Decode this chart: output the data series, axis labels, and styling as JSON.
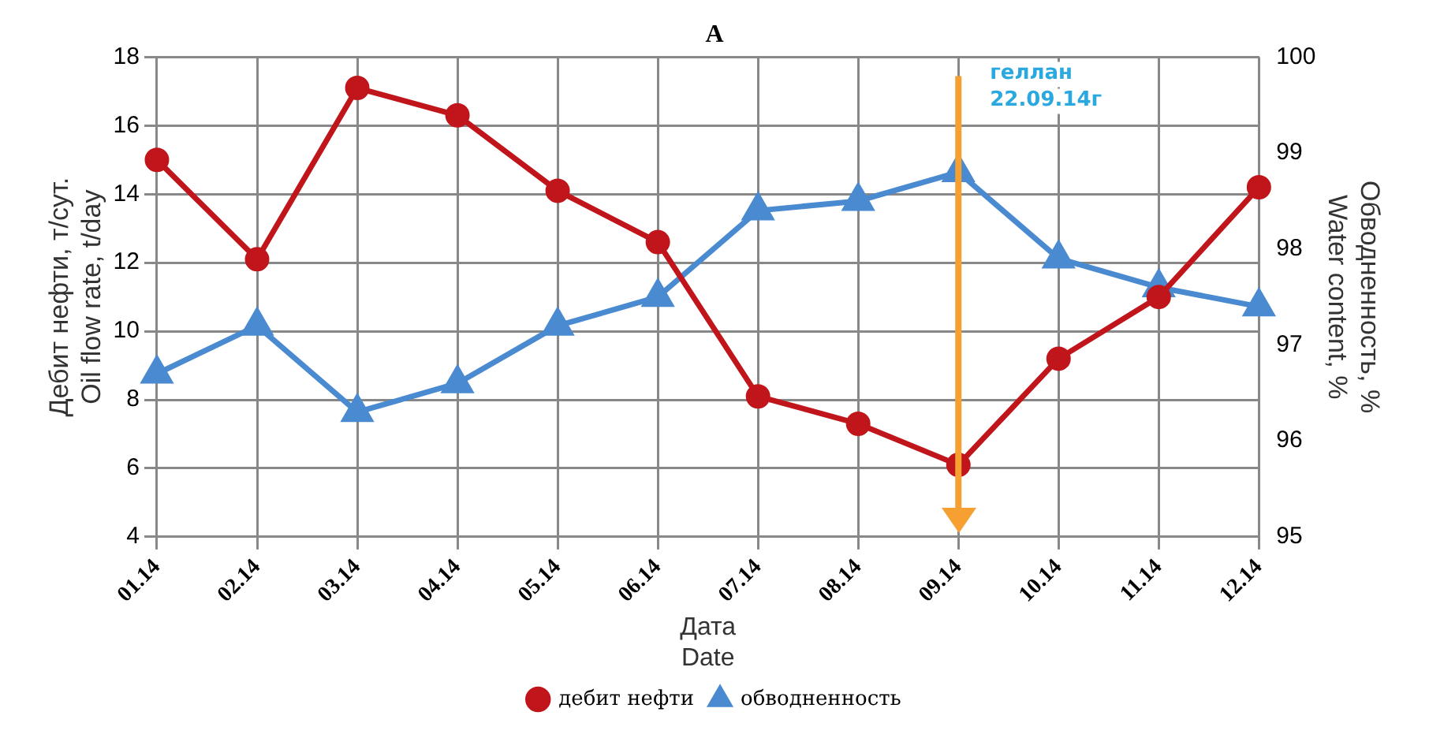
{
  "chart_data": {
    "type": "line",
    "title": "A",
    "xlabel": "Дата\nDate",
    "ylabel": "Дебит нефти, т/сут.\nOil flow rate, t/day",
    "y2label": "Обводненность, %\nWater content, %",
    "categories": [
      "01.14",
      "02.14",
      "03.14",
      "04.14",
      "05.14",
      "06.14",
      "07.14",
      "08.14",
      "09.14",
      "10.14",
      "11.14",
      "12.14"
    ],
    "series": [
      {
        "name": "дебит нефти",
        "color": "#c0161b",
        "marker": "circle",
        "values": [
          15.0,
          12.1,
          17.1,
          16.3,
          14.1,
          12.6,
          8.1,
          7.3,
          6.1,
          9.2,
          11.0,
          14.2
        ]
      },
      {
        "name": "обводненность",
        "color": "#4a8ad0",
        "marker": "triangle",
        "axis": "y2",
        "values": [
          96.7,
          97.2,
          96.3,
          96.6,
          97.2,
          97.5,
          98.4,
          98.5,
          98.8,
          97.9,
          97.6,
          97.4
        ]
      }
    ],
    "ylim": [
      4,
      18
    ],
    "yticks": [
      4,
      6,
      8,
      10,
      12,
      14,
      16,
      18
    ],
    "y2lim": [
      95,
      100
    ],
    "y2ticks": [
      95,
      96,
      97,
      98,
      99,
      100
    ],
    "grid": true,
    "legend": "bottom",
    "ref_lines": [
      {
        "axis": "x",
        "value": "09.14",
        "label": "геллан 22.09.14г",
        "color": "#f5a030"
      }
    ]
  }
}
